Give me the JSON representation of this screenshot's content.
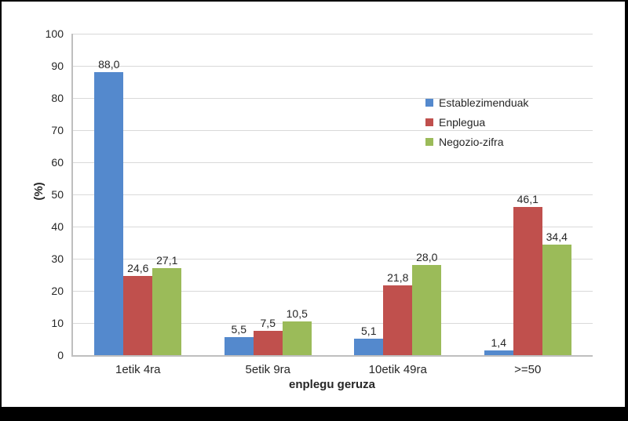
{
  "page": {
    "background_color": "#000000",
    "canvas_color": "#ffffff"
  },
  "chart_data": {
    "type": "bar",
    "title": "",
    "xlabel": "enplegu geruza",
    "ylabel": "(%)",
    "categories": [
      "1etik 4ra",
      "5etik 9ra",
      "10etik 49ra",
      ">=50"
    ],
    "series": [
      {
        "name": "Establezimenduak",
        "color": "#5489CD",
        "values": [
          88.0,
          5.5,
          5.1,
          1.4
        ],
        "labels": [
          "88,0",
          "5,5",
          "5,1",
          "1,4"
        ]
      },
      {
        "name": "Enplegua",
        "color": "#C0504D",
        "values": [
          24.6,
          7.5,
          21.8,
          46.1
        ],
        "labels": [
          "24,6",
          "7,5",
          "21,8",
          "46,1"
        ]
      },
      {
        "name": "Negozio-zifra",
        "color": "#9BBB59",
        "values": [
          27.1,
          10.5,
          28.0,
          34.4
        ],
        "labels": [
          "27,1",
          "10,5",
          "28,0",
          "34,4"
        ]
      }
    ],
    "ylim": [
      0,
      100
    ],
    "ytick_step": 10,
    "yticks": [
      "0",
      "10",
      "20",
      "30",
      "40",
      "50",
      "60",
      "70",
      "80",
      "90",
      "100"
    ],
    "grid": "horizontal",
    "gridline_color": "#D9D9D9",
    "axis_color": "#BFBFBF",
    "text_color": "#262626",
    "legend_position": "right-inside"
  }
}
